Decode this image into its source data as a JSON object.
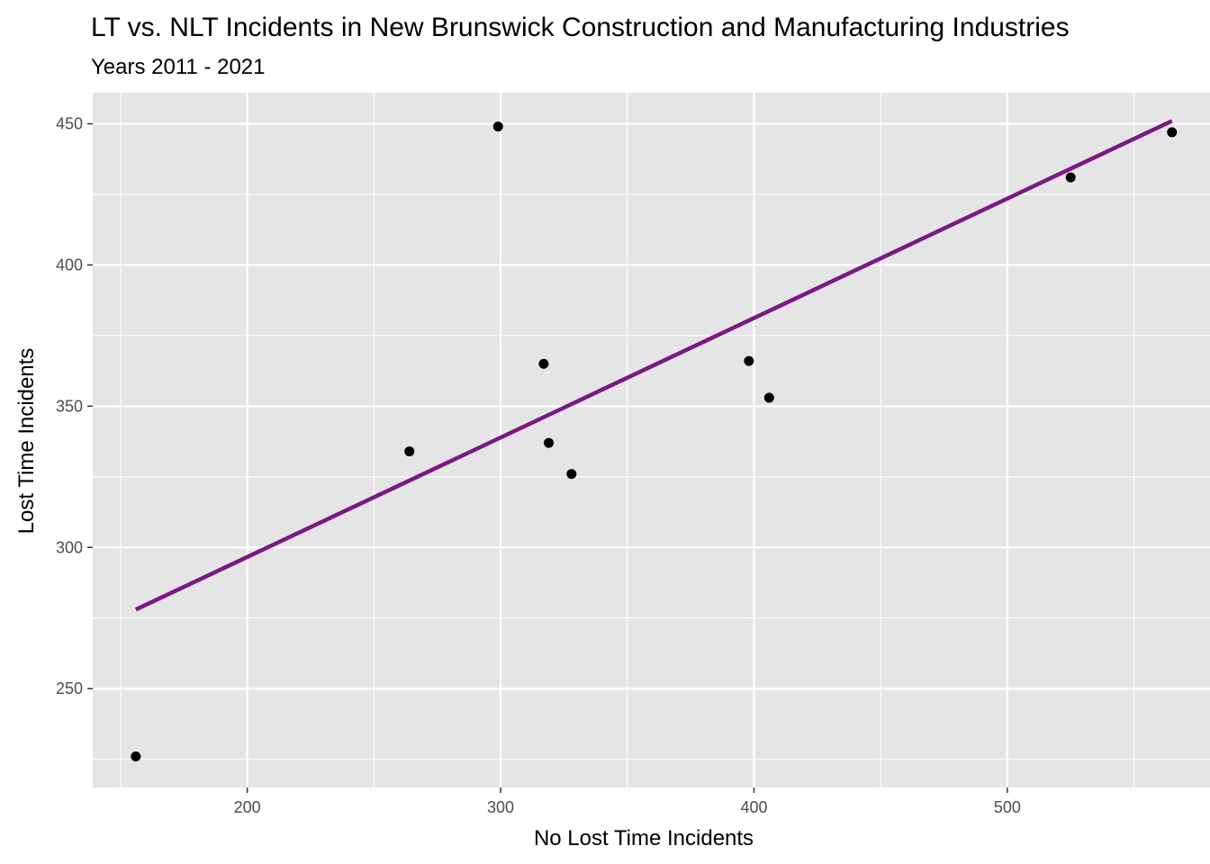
{
  "chart_data": {
    "type": "scatter",
    "title": "LT vs. NLT Incidents in New Brunswick Construction and Manufacturing Industries",
    "subtitle": "Years 2011 - 2021",
    "xlabel": "No Lost Time Incidents",
    "ylabel": "Lost Time Incidents",
    "xlim": [
      139,
      580
    ],
    "ylim": [
      215,
      461
    ],
    "x_major_ticks": [
      200,
      300,
      400,
      500
    ],
    "x_minor_ticks": [
      150,
      250,
      350,
      450,
      550
    ],
    "y_major_ticks": [
      250,
      300,
      350,
      400,
      450
    ],
    "y_minor_ticks": [
      225,
      275,
      325,
      375,
      425
    ],
    "grid": true,
    "points": [
      {
        "x": 156,
        "y": 226
      },
      {
        "x": 264,
        "y": 334
      },
      {
        "x": 299,
        "y": 449
      },
      {
        "x": 317,
        "y": 365
      },
      {
        "x": 319,
        "y": 337
      },
      {
        "x": 328,
        "y": 326
      },
      {
        "x": 398,
        "y": 366
      },
      {
        "x": 406,
        "y": 353
      },
      {
        "x": 525,
        "y": 431
      },
      {
        "x": 565,
        "y": 447
      }
    ],
    "trend_line": {
      "x": [
        156,
        565
      ],
      "y": [
        278,
        451
      ],
      "color": "#7b1884"
    },
    "colors": {
      "panel_background": "#e5e5e5",
      "grid": "#ffffff",
      "point": "#000000",
      "tick_text": "#4d4d4d"
    }
  }
}
